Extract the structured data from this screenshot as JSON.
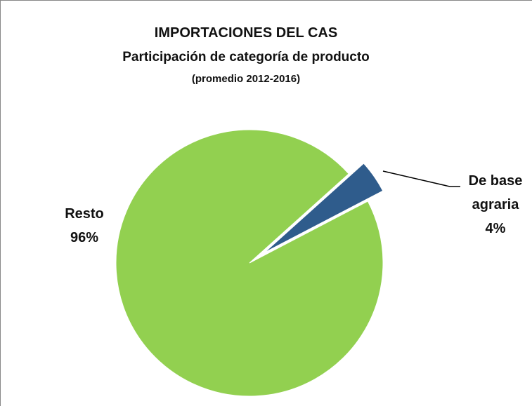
{
  "chart_data": {
    "type": "pie",
    "title": "IMPORTACIONES DEL CAS",
    "subtitle": "Participación de categoría de producto",
    "note": "(promedio 2012-2016)",
    "categories": [
      "De base agraria",
      "Resto"
    ],
    "values": [
      4,
      96
    ],
    "value_labels": [
      "4%",
      "96%"
    ],
    "colors": [
      "#2f5c8c",
      "#92d050"
    ]
  }
}
